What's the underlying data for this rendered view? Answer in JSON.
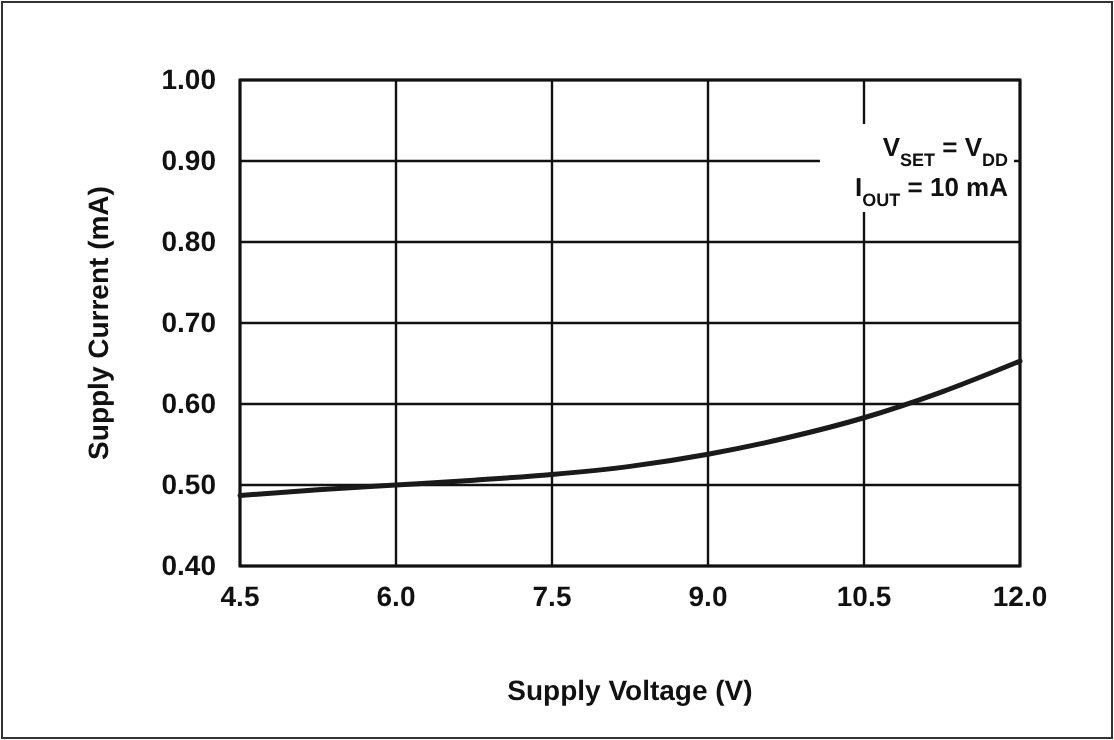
{
  "chart_data": {
    "type": "line",
    "xlabel": "Supply Voltage (V)",
    "ylabel": "Supply Current (mA)",
    "x": [
      4.5,
      5.25,
      6.0,
      6.75,
      7.5,
      8.25,
      9.0,
      9.75,
      10.5,
      11.25,
      12.0
    ],
    "series": [
      {
        "color": "#1a1a1a",
        "values": [
          0.487,
          0.494,
          0.5,
          0.506,
          0.513,
          0.523,
          0.538,
          0.558,
          0.583,
          0.615,
          0.653
        ]
      }
    ],
    "xlim": [
      4.5,
      12.0
    ],
    "xticks": [
      {
        "value": 4.5,
        "label": "4.5"
      },
      {
        "value": 6.0,
        "label": "6.0"
      },
      {
        "value": 7.5,
        "label": "7.5"
      },
      {
        "value": 9.0,
        "label": "9.0"
      },
      {
        "value": 10.5,
        "label": "10.5"
      },
      {
        "value": 12.0,
        "label": "12.0"
      }
    ],
    "ylim": [
      0.4,
      1.0
    ],
    "yticks": [
      {
        "value": 0.4,
        "label": "0.40"
      },
      {
        "value": 0.5,
        "label": "0.50"
      },
      {
        "value": 0.6,
        "label": "0.60"
      },
      {
        "value": 0.7,
        "label": "0.70"
      },
      {
        "value": 0.8,
        "label": "0.80"
      },
      {
        "value": 0.9,
        "label": "0.90"
      },
      {
        "value": 1.0,
        "label": "1.00"
      }
    ],
    "grid": true,
    "marker": "none",
    "line_style": "solid",
    "annotations": [
      "V$_{SET}$ = V$_{DD}$",
      "I$_{OUT}$ = 10 mA"
    ]
  }
}
